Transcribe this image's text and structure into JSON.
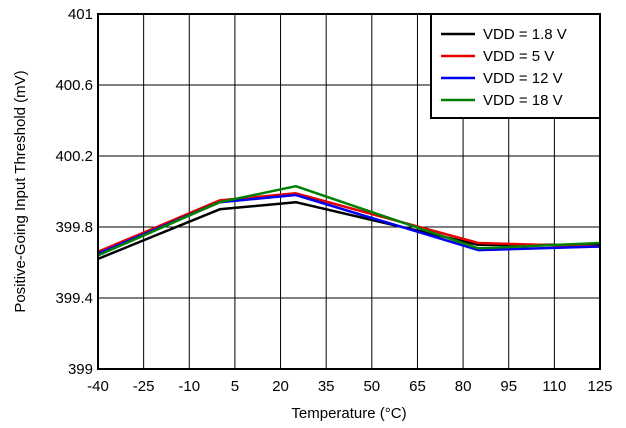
{
  "chart_data": {
    "type": "line",
    "xlabel": "Temperature (°C)",
    "ylabel": "Positive-Going Input Threshold (mV)",
    "xlim": [
      -40,
      125
    ],
    "ylim": [
      399,
      401
    ],
    "x_ticks": [
      -40,
      -25,
      -10,
      5,
      20,
      35,
      50,
      65,
      80,
      95,
      110,
      125
    ],
    "x_tick_labels": [
      "-40",
      "-25",
      "-10",
      "5",
      "20",
      "35",
      "50",
      "65",
      "80",
      "95",
      "110",
      "125"
    ],
    "y_ticks": [
      399,
      399.4,
      399.8,
      400.2,
      400.6,
      401
    ],
    "y_tick_labels": [
      "399",
      "399.4",
      "399.8",
      "400.2",
      "400.6",
      "401"
    ],
    "grid": true,
    "legend_position": "top-right",
    "series": [
      {
        "name": "VDD = 1.8 V",
        "color": "#000000",
        "x": [
          -40,
          0,
          25,
          85,
          125
        ],
        "y": [
          399.62,
          399.9,
          399.94,
          399.7,
          399.7
        ]
      },
      {
        "name": "VDD = 5 V",
        "color": "#e60000",
        "x": [
          -40,
          0,
          25,
          85,
          125
        ],
        "y": [
          399.66,
          399.95,
          399.99,
          399.71,
          399.69
        ]
      },
      {
        "name": "VDD = 12 V",
        "color": "#0000ee",
        "x": [
          -40,
          0,
          25,
          85,
          125
        ],
        "y": [
          399.65,
          399.94,
          399.98,
          399.67,
          399.69
        ]
      },
      {
        "name": "VDD = 18 V",
        "color": "#008000",
        "x": [
          -40,
          0,
          25,
          85,
          125
        ],
        "y": [
          399.64,
          399.94,
          400.03,
          399.68,
          399.71
        ]
      }
    ]
  }
}
